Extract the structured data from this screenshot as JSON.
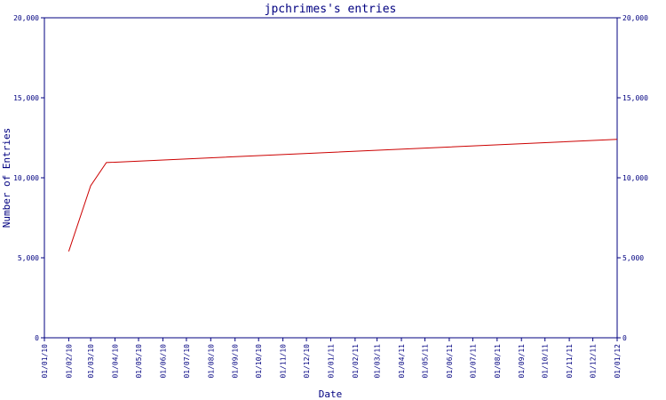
{
  "chart_data": {
    "type": "line",
    "title": "jpchrimes's entries",
    "xlabel": "Date",
    "ylabel": "Number of Entries",
    "ylim": [
      0,
      20000
    ],
    "y_ticks": [
      "0",
      "5,000",
      "10,000",
      "15,000",
      "20,000"
    ],
    "y_tick_values": [
      0,
      5000,
      10000,
      15000,
      20000
    ],
    "x_tick_labels": [
      "01/01/10",
      "01/02/10",
      "01/03/10",
      "01/04/10",
      "01/05/10",
      "01/06/10",
      "01/07/10",
      "01/08/10",
      "01/09/10",
      "01/10/10",
      "01/11/10",
      "01/12/10",
      "01/01/11",
      "01/02/11",
      "01/03/11",
      "01/04/11",
      "01/05/11",
      "01/06/11",
      "01/07/11",
      "01/08/11",
      "01/09/11",
      "01/10/11",
      "01/11/11",
      "01/12/11",
      "01/01/12"
    ],
    "grid": false,
    "legend": "none",
    "series": [
      {
        "color": "#cc0000",
        "points": [
          {
            "x": "2010-02-01",
            "y": 5400
          },
          {
            "x": "2010-03-01",
            "y": 9500
          },
          {
            "x": "2010-03-21",
            "y": 10950
          },
          {
            "x": "2012-01-01",
            "y": 12400
          }
        ]
      }
    ],
    "colors": {
      "axis": "#000080",
      "text": "#000080",
      "line": "#cc0000",
      "background": "#ffffff"
    }
  }
}
